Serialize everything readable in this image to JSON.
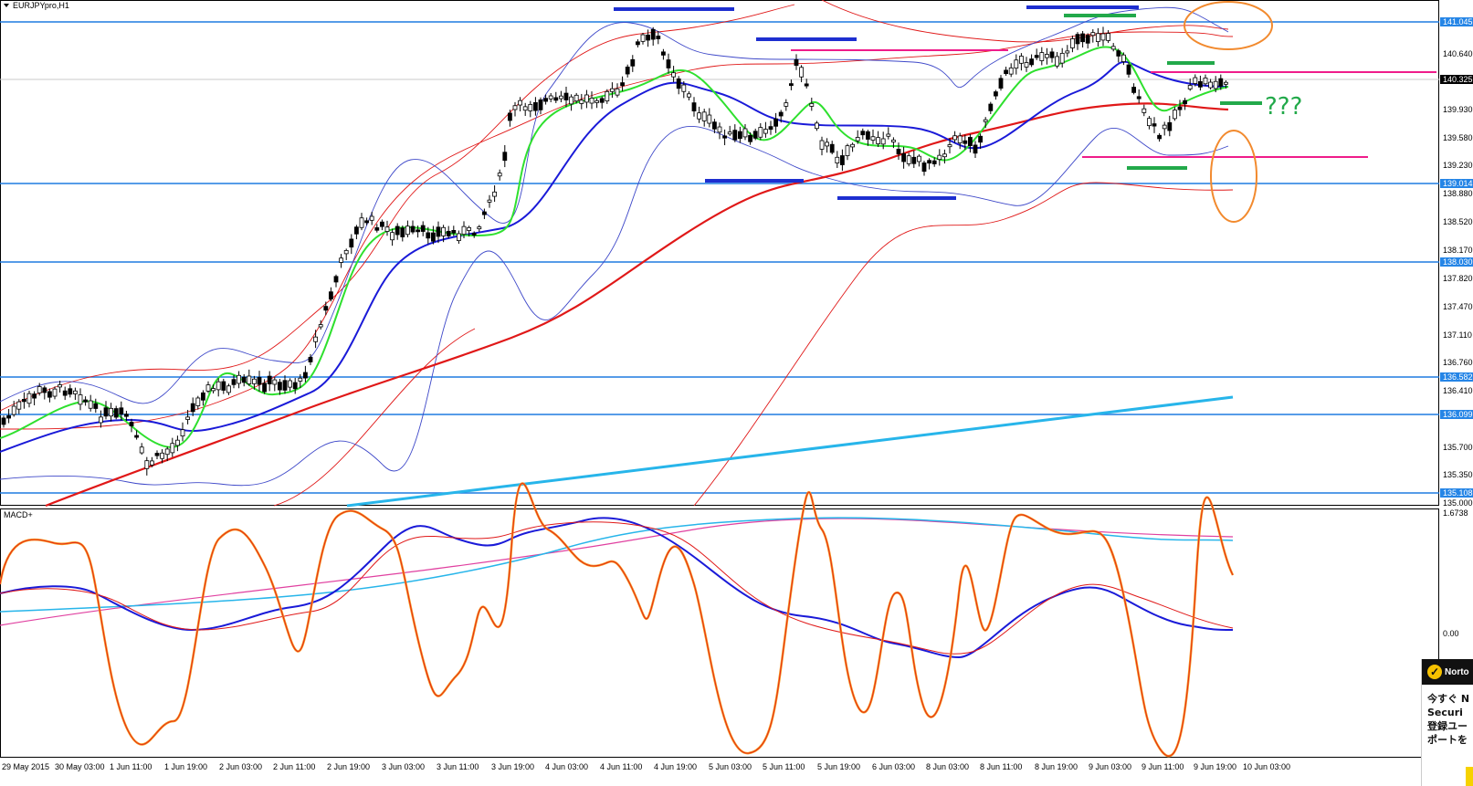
{
  "window": {
    "title": "EURJPYpro,H1"
  },
  "indicator_label": "MACD+",
  "annotation": {
    "question_marks": "???"
  },
  "colors": {
    "hline": "#1f7be0",
    "tag_bg": "#2585e6",
    "bb": "#3f49c9",
    "ma_fast": "#2ee02e",
    "ma_mid": "#1a1ad8",
    "ma_slow": "#e01818",
    "trend": "#27b5ea",
    "env": "#e01818",
    "resist": "#1d2ed0",
    "pink": "#ef1c8a",
    "green_mark": "#22a94a",
    "ellipse": "#f28a2e",
    "macd_orange": "#f7941d"
  },
  "price_scale": {
    "ticks": [
      "140.640",
      "139.930",
      "139.580",
      "139.230",
      "138.880",
      "138.520",
      "138.170",
      "137.820",
      "137.470",
      "137.110",
      "136.760",
      "136.410",
      "135.700",
      "135.350",
      "135.000"
    ],
    "tags": [
      "141.045",
      "139.014",
      "138.030",
      "136.582",
      "136.099",
      "135.108"
    ],
    "current": "140.325"
  },
  "macd_scale": {
    "top": "1.6738",
    "zero": "0.00"
  },
  "time_axis": [
    "29 May 2015",
    "30 May 03:00",
    "1 Jun 11:00",
    "1 Jun 19:00",
    "2 Jun 03:00",
    "2 Jun 11:00",
    "2 Jun 19:00",
    "3 Jun 03:00",
    "3 Jun 11:00",
    "3 Jun 19:00",
    "4 Jun 03:00",
    "4 Jun 11:00",
    "4 Jun 19:00",
    "5 Jun 03:00",
    "5 Jun 11:00",
    "5 Jun 19:00",
    "6 Jun 03:00",
    "8 Jun 03:00",
    "8 Jun 11:00",
    "8 Jun 19:00",
    "9 Jun 03:00",
    "9 Jun 11:00",
    "9 Jun 19:00",
    "10 Jun 03:00"
  ],
  "popup": {
    "brand": "Norto",
    "lines": [
      "今すぐ N",
      "Securi",
      "登録ユー",
      "ポートを"
    ]
  }
}
